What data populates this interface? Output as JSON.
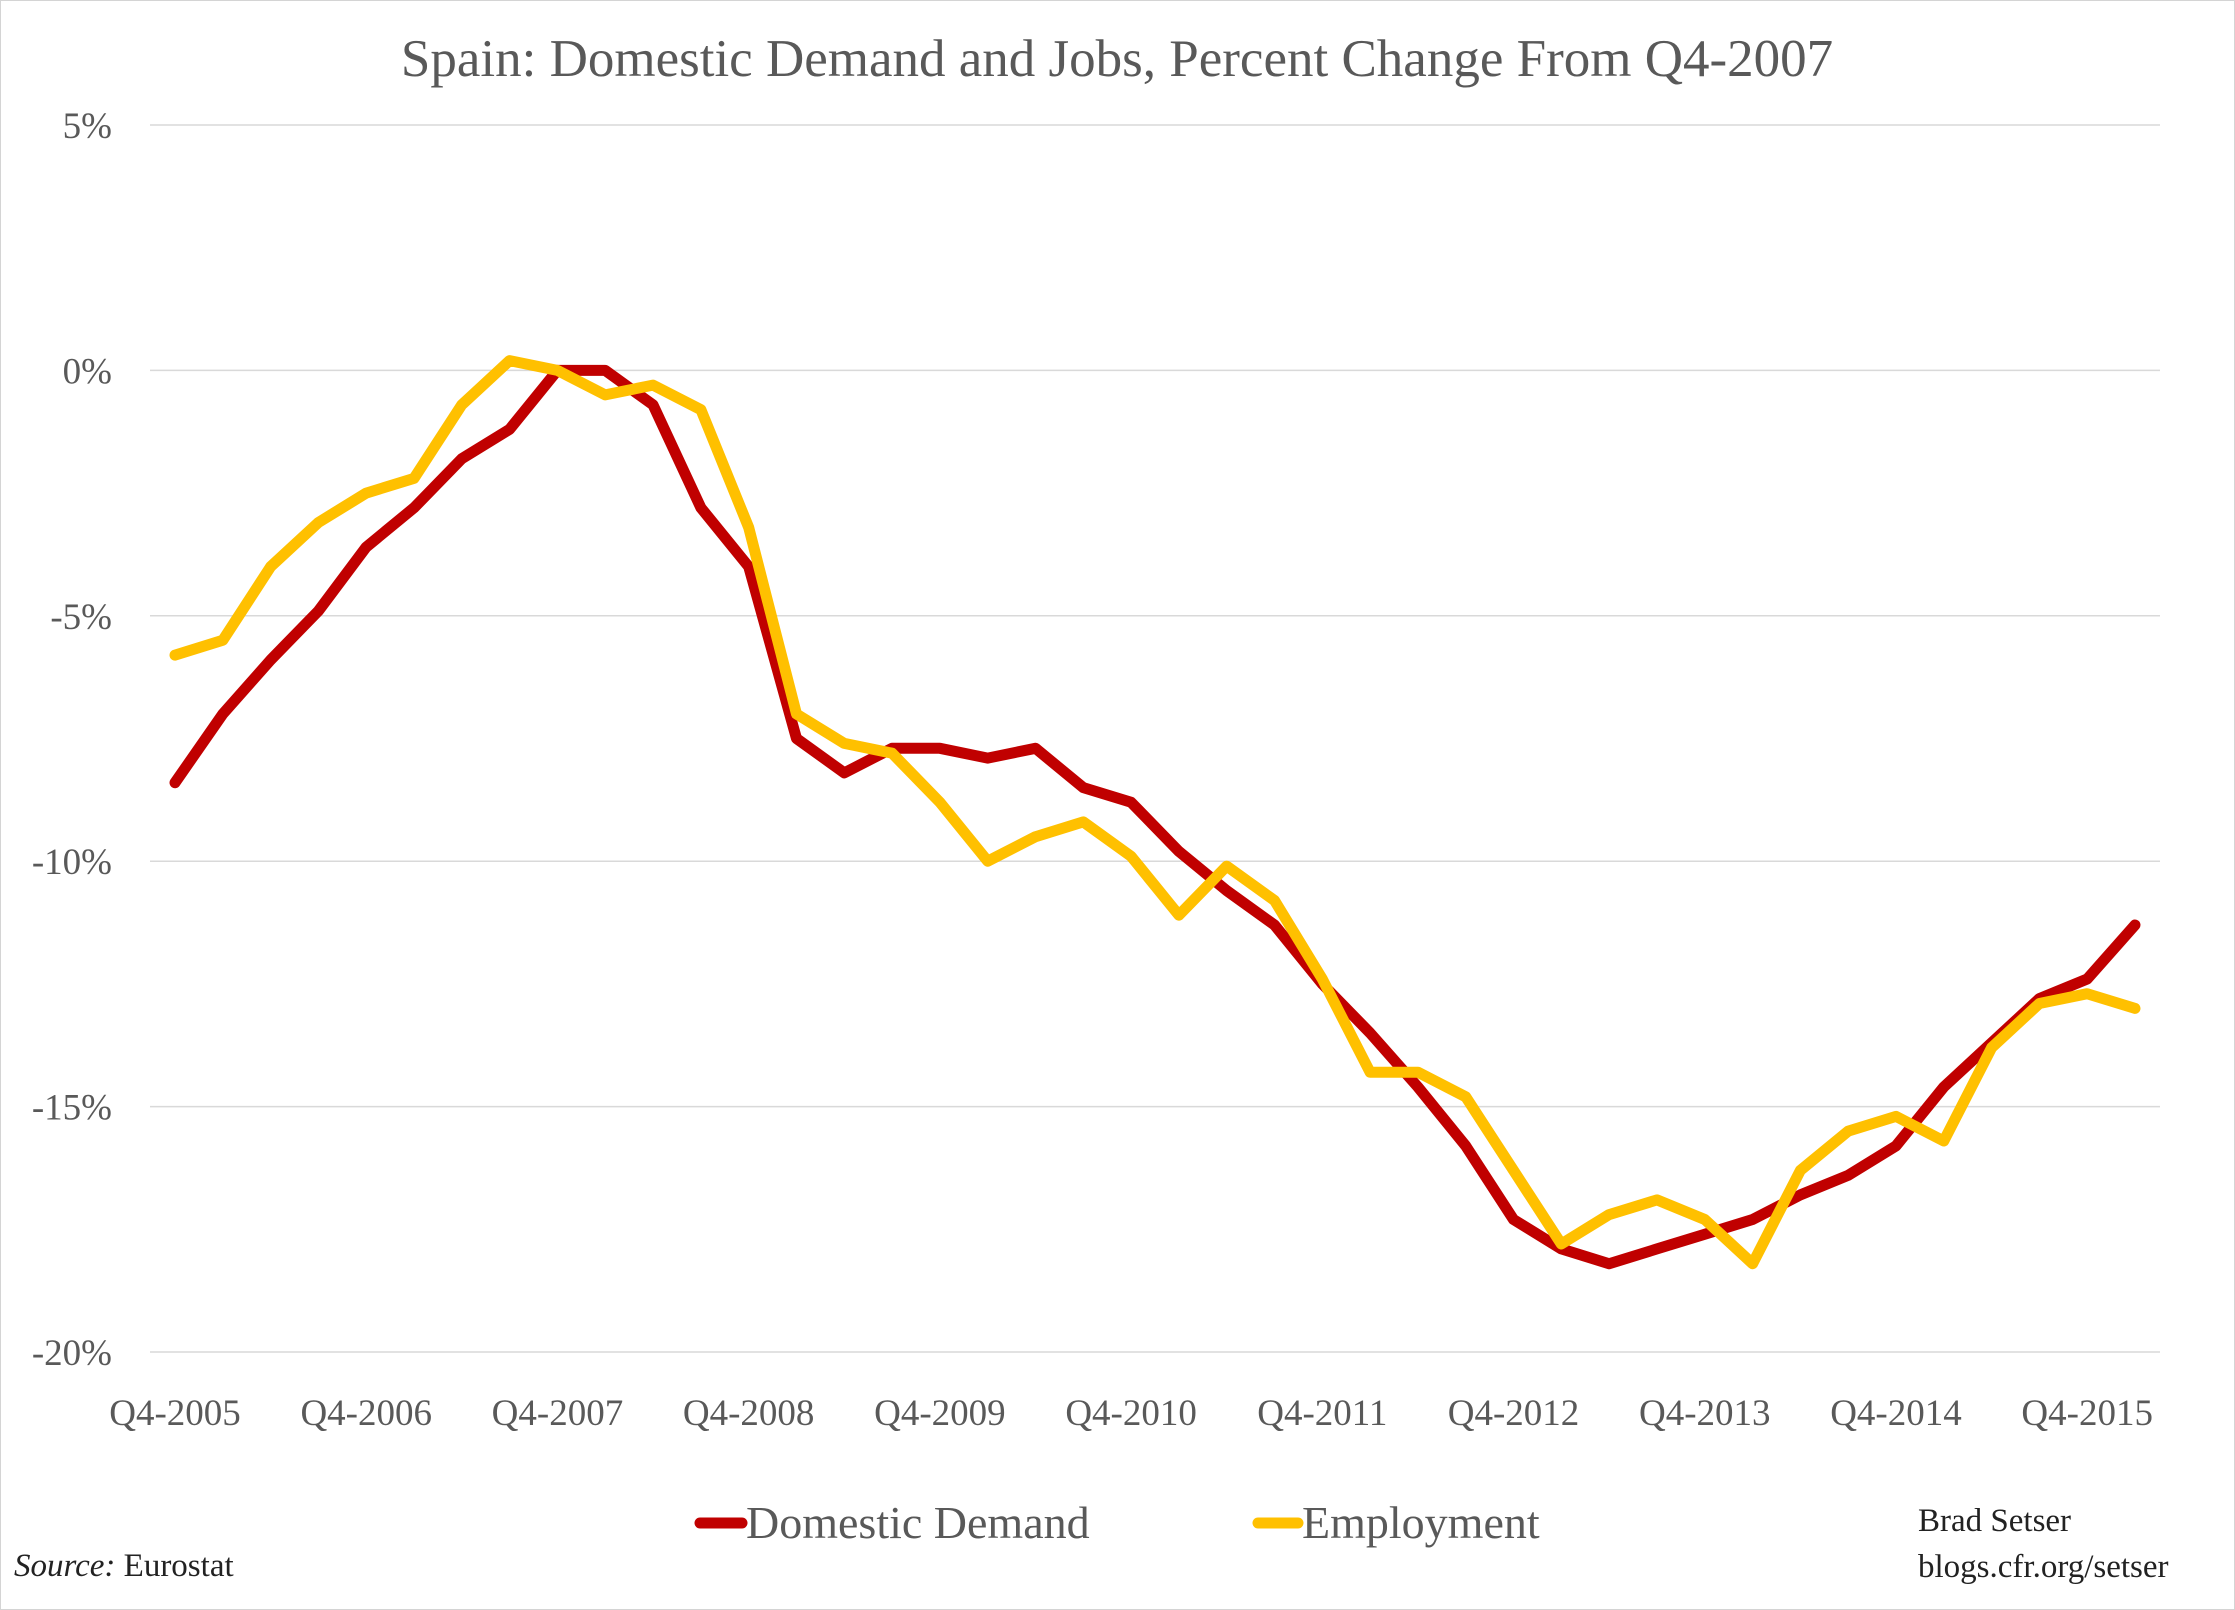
{
  "chart_data": {
    "type": "line",
    "title": "Spain: Domestic Demand and Jobs, Percent Change From Q4-2007",
    "xlabel": "",
    "ylabel": "",
    "ylim": [
      -20,
      5
    ],
    "yticks": [
      5,
      0,
      -5,
      -10,
      -15,
      -20
    ],
    "ytick_labels": [
      "5%",
      "0%",
      "-5%",
      "-10%",
      "-15%",
      "-20%"
    ],
    "xtick_labels": [
      "Q4-2005",
      "Q4-2006",
      "Q4-2007",
      "Q4-2008",
      "Q4-2009",
      "Q4-2010",
      "Q4-2011",
      "Q4-2012",
      "Q4-2013",
      "Q4-2014",
      "Q4-2015"
    ],
    "x": [
      "Q4-2005",
      "Q1-2006",
      "Q2-2006",
      "Q3-2006",
      "Q4-2006",
      "Q1-2007",
      "Q2-2007",
      "Q3-2007",
      "Q4-2007",
      "Q1-2008",
      "Q2-2008",
      "Q3-2008",
      "Q4-2008",
      "Q1-2009",
      "Q2-2009",
      "Q3-2009",
      "Q4-2009",
      "Q1-2010",
      "Q2-2010",
      "Q3-2010",
      "Q4-2010",
      "Q1-2011",
      "Q2-2011",
      "Q3-2011",
      "Q4-2011",
      "Q1-2012",
      "Q2-2012",
      "Q3-2012",
      "Q4-2012",
      "Q1-2013",
      "Q2-2013",
      "Q3-2013",
      "Q4-2013",
      "Q1-2014",
      "Q2-2014",
      "Q3-2014",
      "Q4-2014",
      "Q1-2015",
      "Q2-2015",
      "Q3-2015",
      "Q4-2015",
      "Q1-2016"
    ],
    "series": [
      {
        "name": "Domestic Demand",
        "color": "#c00000",
        "values": [
          -8.4,
          -7.0,
          -5.9,
          -4.9,
          -3.6,
          -2.8,
          -1.8,
          -1.2,
          0.0,
          0.0,
          -0.7,
          -2.8,
          -4.0,
          -7.5,
          -8.2,
          -7.7,
          -7.7,
          -7.9,
          -7.7,
          -8.5,
          -8.8,
          -9.8,
          -10.6,
          -11.3,
          -12.5,
          -13.5,
          -14.6,
          -15.8,
          -17.3,
          -17.9,
          -18.2,
          -17.9,
          -17.6,
          -17.3,
          -16.8,
          -16.4,
          -15.8,
          -14.6,
          -13.7,
          -12.8,
          -12.4,
          -11.3
        ]
      },
      {
        "name": "Employment",
        "color": "#ffc000",
        "values": [
          -5.8,
          -5.5,
          -4.0,
          -3.1,
          -2.5,
          -2.2,
          -0.7,
          0.2,
          0.0,
          -0.5,
          -0.3,
          -0.8,
          -3.2,
          -7.0,
          -7.6,
          -7.8,
          -8.8,
          -10.0,
          -9.5,
          -9.2,
          -9.9,
          -11.1,
          -10.1,
          -10.8,
          -12.4,
          -14.3,
          -14.3,
          -14.8,
          -16.3,
          -17.8,
          -17.2,
          -16.9,
          -17.3,
          -18.2,
          -16.3,
          -15.5,
          -15.2,
          -15.7,
          -13.8,
          -12.9,
          -12.7,
          -13.0
        ]
      }
    ],
    "legend": {
      "placement": "bottom",
      "entries": [
        "Domestic Demand",
        "Employment"
      ]
    },
    "grid": {
      "horizontal": true,
      "vertical": false
    }
  },
  "source": {
    "label": "Source:",
    "text": "Eurostat"
  },
  "credit": {
    "author": "Brad Setser",
    "site": "blogs.cfr.org/setser"
  }
}
